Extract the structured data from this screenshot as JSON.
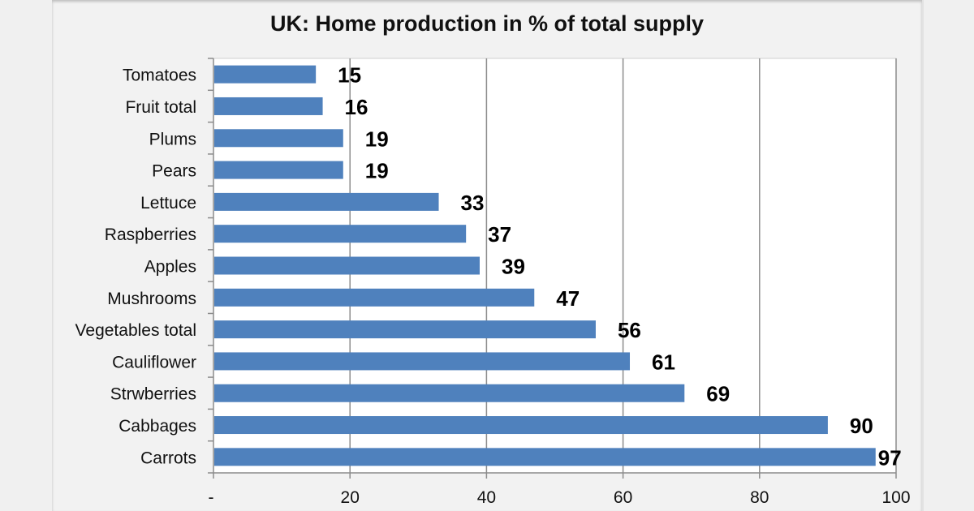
{
  "chart_data": {
    "type": "bar",
    "orientation": "horizontal",
    "title": "UK: Home production in % of total supply",
    "categories": [
      "Tomatoes",
      "Fruit total",
      "Plums",
      "Pears",
      "Lettuce",
      "Raspberries",
      "Apples",
      "Mushrooms",
      "Vegetables total",
      "Cauliflower",
      "Strwberries",
      "Cabbages",
      "Carrots"
    ],
    "values": [
      15,
      16,
      19,
      19,
      33,
      37,
      39,
      47,
      56,
      61,
      69,
      90,
      97
    ],
    "xlim": [
      0,
      100
    ],
    "xticks": [
      "-",
      "20",
      "40",
      "60",
      "80",
      "100"
    ],
    "grid": "vertical",
    "legend": "none",
    "bar_color": "#4f81bd",
    "data_labels": true
  }
}
